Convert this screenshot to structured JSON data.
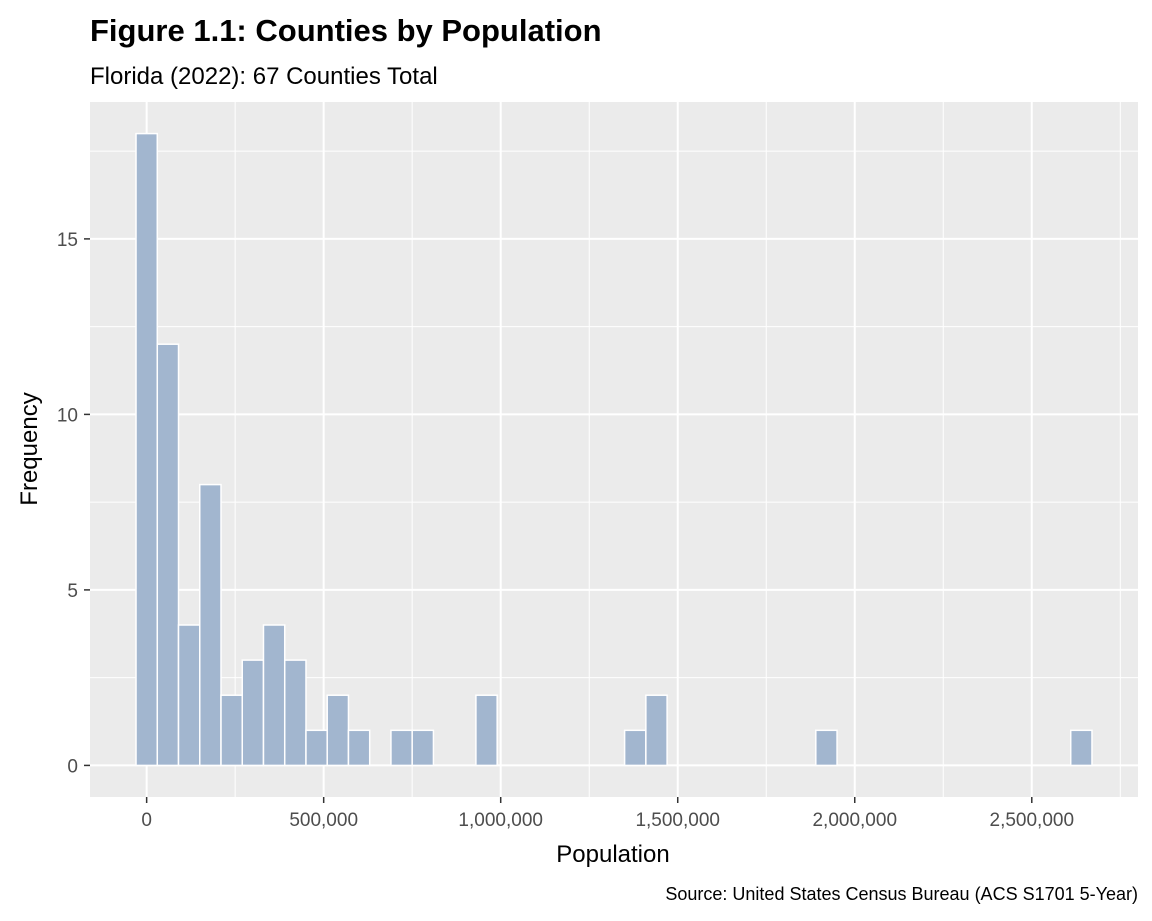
{
  "colors": {
    "panel_background": "#ebebeb",
    "grid_line": "#ffffff",
    "bar_fill": "#a2b6cf",
    "bar_outline": "#ffffff",
    "tick_mark": "#333333"
  },
  "chart_data": {
    "type": "bar",
    "subtype": "histogram",
    "title": "Figure 1.1: Counties by Population",
    "subtitle": "Florida (2022): 67 Counties Total",
    "xlabel": "Population",
    "ylabel": "Frequency",
    "caption": "Source: United States Census Bureau (ACS S1701 5-Year)",
    "bin_width": 60000,
    "xlim": [
      -160000,
      2800000
    ],
    "ylim": [
      -0.9,
      18.9
    ],
    "x_ticks": [
      0,
      500000,
      1000000,
      1500000,
      2000000,
      2500000
    ],
    "x_tick_labels": [
      "0",
      "500,000",
      "1,000,000",
      "1,500,000",
      "2,000,000",
      "2,500,000"
    ],
    "y_ticks": [
      0,
      5,
      10,
      15
    ],
    "y_tick_labels": [
      "0",
      "5",
      "10",
      "15"
    ],
    "grid": true,
    "bins": [
      {
        "center": 0,
        "count": 18
      },
      {
        "center": 60000,
        "count": 12
      },
      {
        "center": 120000,
        "count": 4
      },
      {
        "center": 180000,
        "count": 8
      },
      {
        "center": 240000,
        "count": 2
      },
      {
        "center": 300000,
        "count": 3
      },
      {
        "center": 360000,
        "count": 4
      },
      {
        "center": 420000,
        "count": 3
      },
      {
        "center": 480000,
        "count": 1
      },
      {
        "center": 540000,
        "count": 2
      },
      {
        "center": 600000,
        "count": 1
      },
      {
        "center": 720000,
        "count": 1
      },
      {
        "center": 780000,
        "count": 1
      },
      {
        "center": 960000,
        "count": 2
      },
      {
        "center": 1380000,
        "count": 1
      },
      {
        "center": 1440000,
        "count": 2
      },
      {
        "center": 1920000,
        "count": 1
      },
      {
        "center": 2640000,
        "count": 1
      }
    ]
  }
}
